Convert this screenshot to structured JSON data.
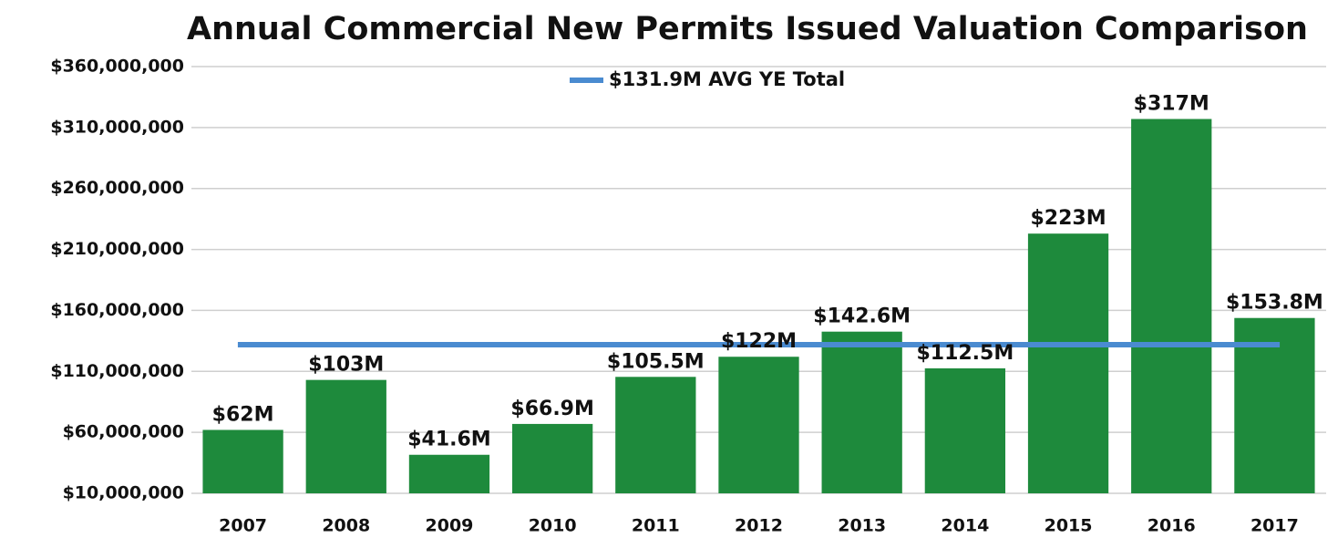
{
  "chart_data": {
    "type": "bar",
    "title": "Annual Commercial New Permits Issued Valuation Comparison",
    "categories": [
      "2007",
      "2008",
      "2009",
      "2010",
      "2011",
      "2012",
      "2013",
      "2014",
      "2015",
      "2016",
      "2017"
    ],
    "values": [
      62000000,
      103000000,
      41600000,
      66900000,
      105500000,
      122000000,
      142600000,
      112500000,
      223000000,
      317000000,
      153800000
    ],
    "value_labels": [
      "$62M",
      "$103M",
      "$41.6M",
      "$66.9M",
      "$105.5M",
      "$122M",
      "$142.6M",
      "$112.5M",
      "$223M",
      "$317M",
      "$153.8M"
    ],
    "color": "#1e8a3c",
    "reference_line": {
      "name": "$131.9M AVG YE Total",
      "value": 131900000,
      "color": "#4a8bd0"
    },
    "ylim": [
      10000000,
      360000000
    ],
    "yticks": [
      {
        "value": 10000000,
        "label": "$10,000,000"
      },
      {
        "value": 60000000,
        "label": "$60,000,000"
      },
      {
        "value": 110000000,
        "label": "$110,000,000"
      },
      {
        "value": 160000000,
        "label": "$160,000,000"
      },
      {
        "value": 210000000,
        "label": "$210,000,000"
      },
      {
        "value": 260000000,
        "label": "$260,000,000"
      },
      {
        "value": 310000000,
        "label": "$310,000,000"
      },
      {
        "value": 360000000,
        "label": "$360,000,000"
      }
    ],
    "grid": true,
    "legend": "top"
  }
}
